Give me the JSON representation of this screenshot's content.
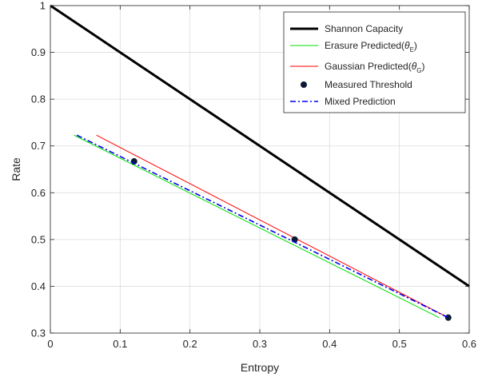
{
  "chart_data": {
    "type": "line",
    "xlabel": "Entropy",
    "ylabel": "Rate",
    "xlim": [
      0,
      0.6
    ],
    "ylim": [
      0.3,
      1
    ],
    "xticks": [
      0,
      0.1,
      0.2,
      0.3,
      0.4,
      0.5,
      0.6
    ],
    "yticks": [
      0.3,
      0.4,
      0.5,
      0.6,
      0.7,
      0.8,
      0.9,
      1
    ],
    "xtick_labels": [
      "0",
      "0.1",
      "0.2",
      "0.3",
      "0.4",
      "0.5",
      "0.6"
    ],
    "ytick_labels": [
      "0.3",
      "0.4",
      "0.5",
      "0.6",
      "0.7",
      "0.8",
      "0.9",
      "1"
    ],
    "grid": true,
    "legend_position": "top-right",
    "series": [
      {
        "name": "Shannon Capacity",
        "color": "#000000",
        "style": "solid-thick",
        "x": [
          0,
          0.6
        ],
        "y": [
          1,
          0.4
        ]
      },
      {
        "name": "Erasure Predicted(θE)",
        "legend_parts": [
          "Erasure Predicted(",
          "θ",
          "E",
          ")"
        ],
        "color": "#00e000",
        "style": "solid",
        "x": [
          0.034,
          0.557
        ],
        "y": [
          0.723,
          0.333
        ]
      },
      {
        "name": "Gaussian Predicted(θG)",
        "legend_parts": [
          "Gaussian Predicted(",
          "θ",
          "G",
          ")"
        ],
        "color": "#ff0000",
        "style": "solid",
        "x": [
          0.066,
          0.57
        ],
        "y": [
          0.723,
          0.333
        ]
      },
      {
        "name": "Measured Threshold",
        "color": "#0b1a33",
        "style": "markers",
        "x": [
          0.12,
          0.35,
          0.57
        ],
        "y": [
          0.667,
          0.5,
          0.333
        ]
      },
      {
        "name": "Mixed Prediction",
        "color": "#0000ee",
        "style": "dash-dot",
        "x": [
          0.038,
          0.57
        ],
        "y": [
          0.723,
          0.333
        ]
      }
    ]
  }
}
